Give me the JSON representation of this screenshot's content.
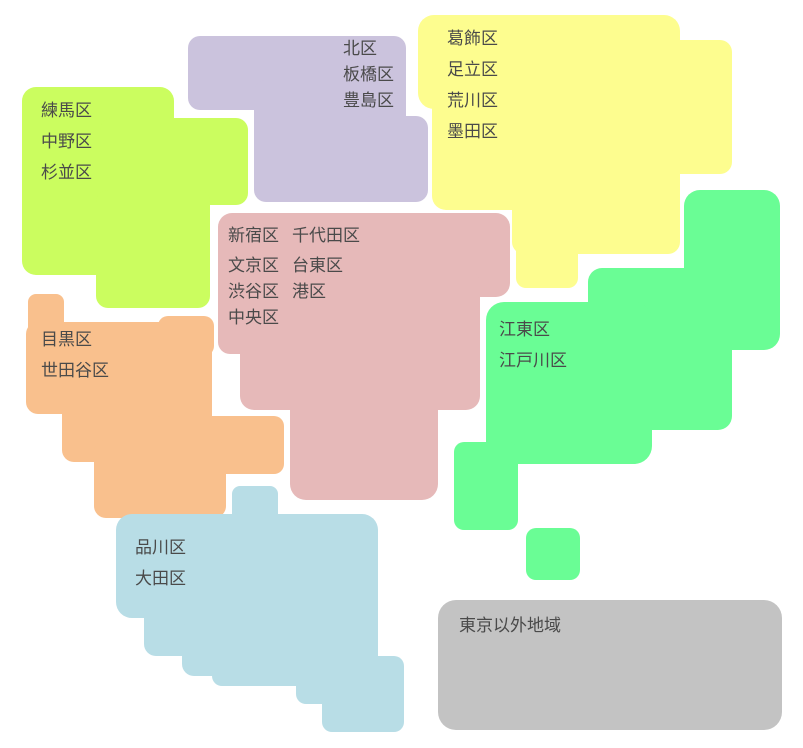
{
  "regions": [
    {
      "id": "northwest",
      "color": "#cbfd5f",
      "wards": [
        "練馬区",
        "中野区",
        "杉並区"
      ]
    },
    {
      "id": "north",
      "color": "#cbc3dd",
      "wards": [
        "北区",
        "板橋区",
        "豊島区"
      ]
    },
    {
      "id": "northeast",
      "color": "#fdfd8f",
      "wards": [
        "葛飾区",
        "足立区",
        "荒川区",
        "墨田区"
      ]
    },
    {
      "id": "central",
      "color": "#e6b9b9",
      "wards": [
        "新宿区",
        "千代田区",
        "文京区",
        "台東区",
        "渋谷区",
        "港区",
        "中央区"
      ]
    },
    {
      "id": "southwest",
      "color": "#f9c08d",
      "wards": [
        "目黒区",
        "世田谷区"
      ]
    },
    {
      "id": "east",
      "color": "#6afd95",
      "wards": [
        "江東区",
        "江戸川区"
      ]
    },
    {
      "id": "south",
      "color": "#b8dde6",
      "wards": [
        "品川区",
        "大田区"
      ]
    },
    {
      "id": "outside",
      "color": "#c3c3c3",
      "wards": [
        "東京以外地域"
      ]
    }
  ]
}
